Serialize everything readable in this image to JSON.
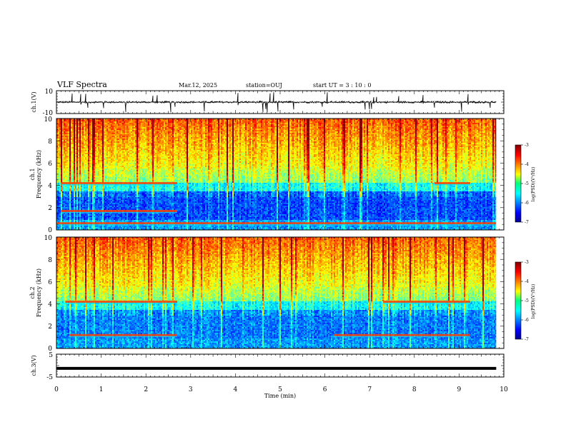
{
  "header": {
    "title": "VLF Spectra",
    "date": "Mar.12, 2025",
    "station": "station=OUJ",
    "start_ut": "start  UT  =   3  : 10 : 0"
  },
  "chart_data": [
    {
      "type": "line",
      "panel": "ch1-waveform",
      "ylabel": "ch.1(V)",
      "ylim": [
        -10,
        10
      ],
      "yticks": [
        "10",
        "-10"
      ],
      "x_range_min": [
        0,
        9.83
      ],
      "baseline_value": 0,
      "spike_times_min": [
        0.35,
        0.55,
        0.66,
        0.7,
        1.05,
        1.55,
        2.15,
        2.25,
        2.55,
        2.65,
        3.3,
        4.05,
        4.62,
        4.68,
        4.72,
        4.78,
        4.85,
        4.95,
        5.3,
        5.95,
        6.05,
        6.9,
        7.0,
        7.05,
        7.1,
        7.15,
        7.65,
        8.2,
        8.45,
        9.05,
        9.2,
        9.7
      ],
      "color": "#000000"
    },
    {
      "type": "heatmap",
      "panel": "ch1-spectrogram",
      "ylabel": "ch.1\nFrequency (kHz)",
      "ylim": [
        0,
        10
      ],
      "yticks": [
        "0",
        "2",
        "4",
        "6",
        "8",
        "10"
      ],
      "x_range_min": [
        0,
        9.83
      ],
      "colorbar": {
        "label": "log(PSD)(V²/Hz)",
        "range": [
          -7,
          -3
        ],
        "ticks": [
          "-3",
          "-4",
          "-5",
          "-6",
          "-7"
        ],
        "colormap": "jet"
      },
      "tone_lines_khz": [
        {
          "freq": 4.2,
          "start": 0.1,
          "end": 2.7
        },
        {
          "freq": 4.2,
          "start": 8.45,
          "end": 9.25
        },
        {
          "freq": 1.7,
          "start": 0.1,
          "end": 2.7
        },
        {
          "freq": 0.6,
          "start": 0.0,
          "end": 9.83
        }
      ]
    },
    {
      "type": "heatmap",
      "panel": "ch2-spectrogram",
      "ylabel": "ch.2\nFrequency (kHz)",
      "ylim": [
        0,
        10
      ],
      "yticks": [
        "0",
        "2",
        "4",
        "6",
        "8",
        "10"
      ],
      "x_range_min": [
        0,
        9.83
      ],
      "colorbar": {
        "label": "log(PSD)(V²/Hz)",
        "range": [
          -7,
          -3
        ],
        "ticks": [
          "-3",
          "-4",
          "-5",
          "-6",
          "-7"
        ],
        "colormap": "jet"
      },
      "tone_lines_khz": [
        {
          "freq": 4.2,
          "start": 0.2,
          "end": 2.7
        },
        {
          "freq": 4.2,
          "start": 7.3,
          "end": 9.25
        },
        {
          "freq": 1.2,
          "start": 0.3,
          "end": 2.7
        },
        {
          "freq": 1.2,
          "start": 6.2,
          "end": 9.25
        }
      ]
    },
    {
      "type": "line",
      "panel": "ch3-level",
      "ylabel": "ch.3(V)",
      "ylim": [
        -5,
        5
      ],
      "yticks": [
        "5",
        "-5"
      ],
      "x_range_min": [
        0,
        9.83
      ],
      "constant_value": -1.2,
      "xlabel": "Time (min)",
      "xlim": [
        0,
        10
      ],
      "xticks": [
        "0",
        "1",
        "2",
        "3",
        "4",
        "5",
        "6",
        "7",
        "8",
        "9",
        "10"
      ],
      "color": "#000000"
    }
  ]
}
